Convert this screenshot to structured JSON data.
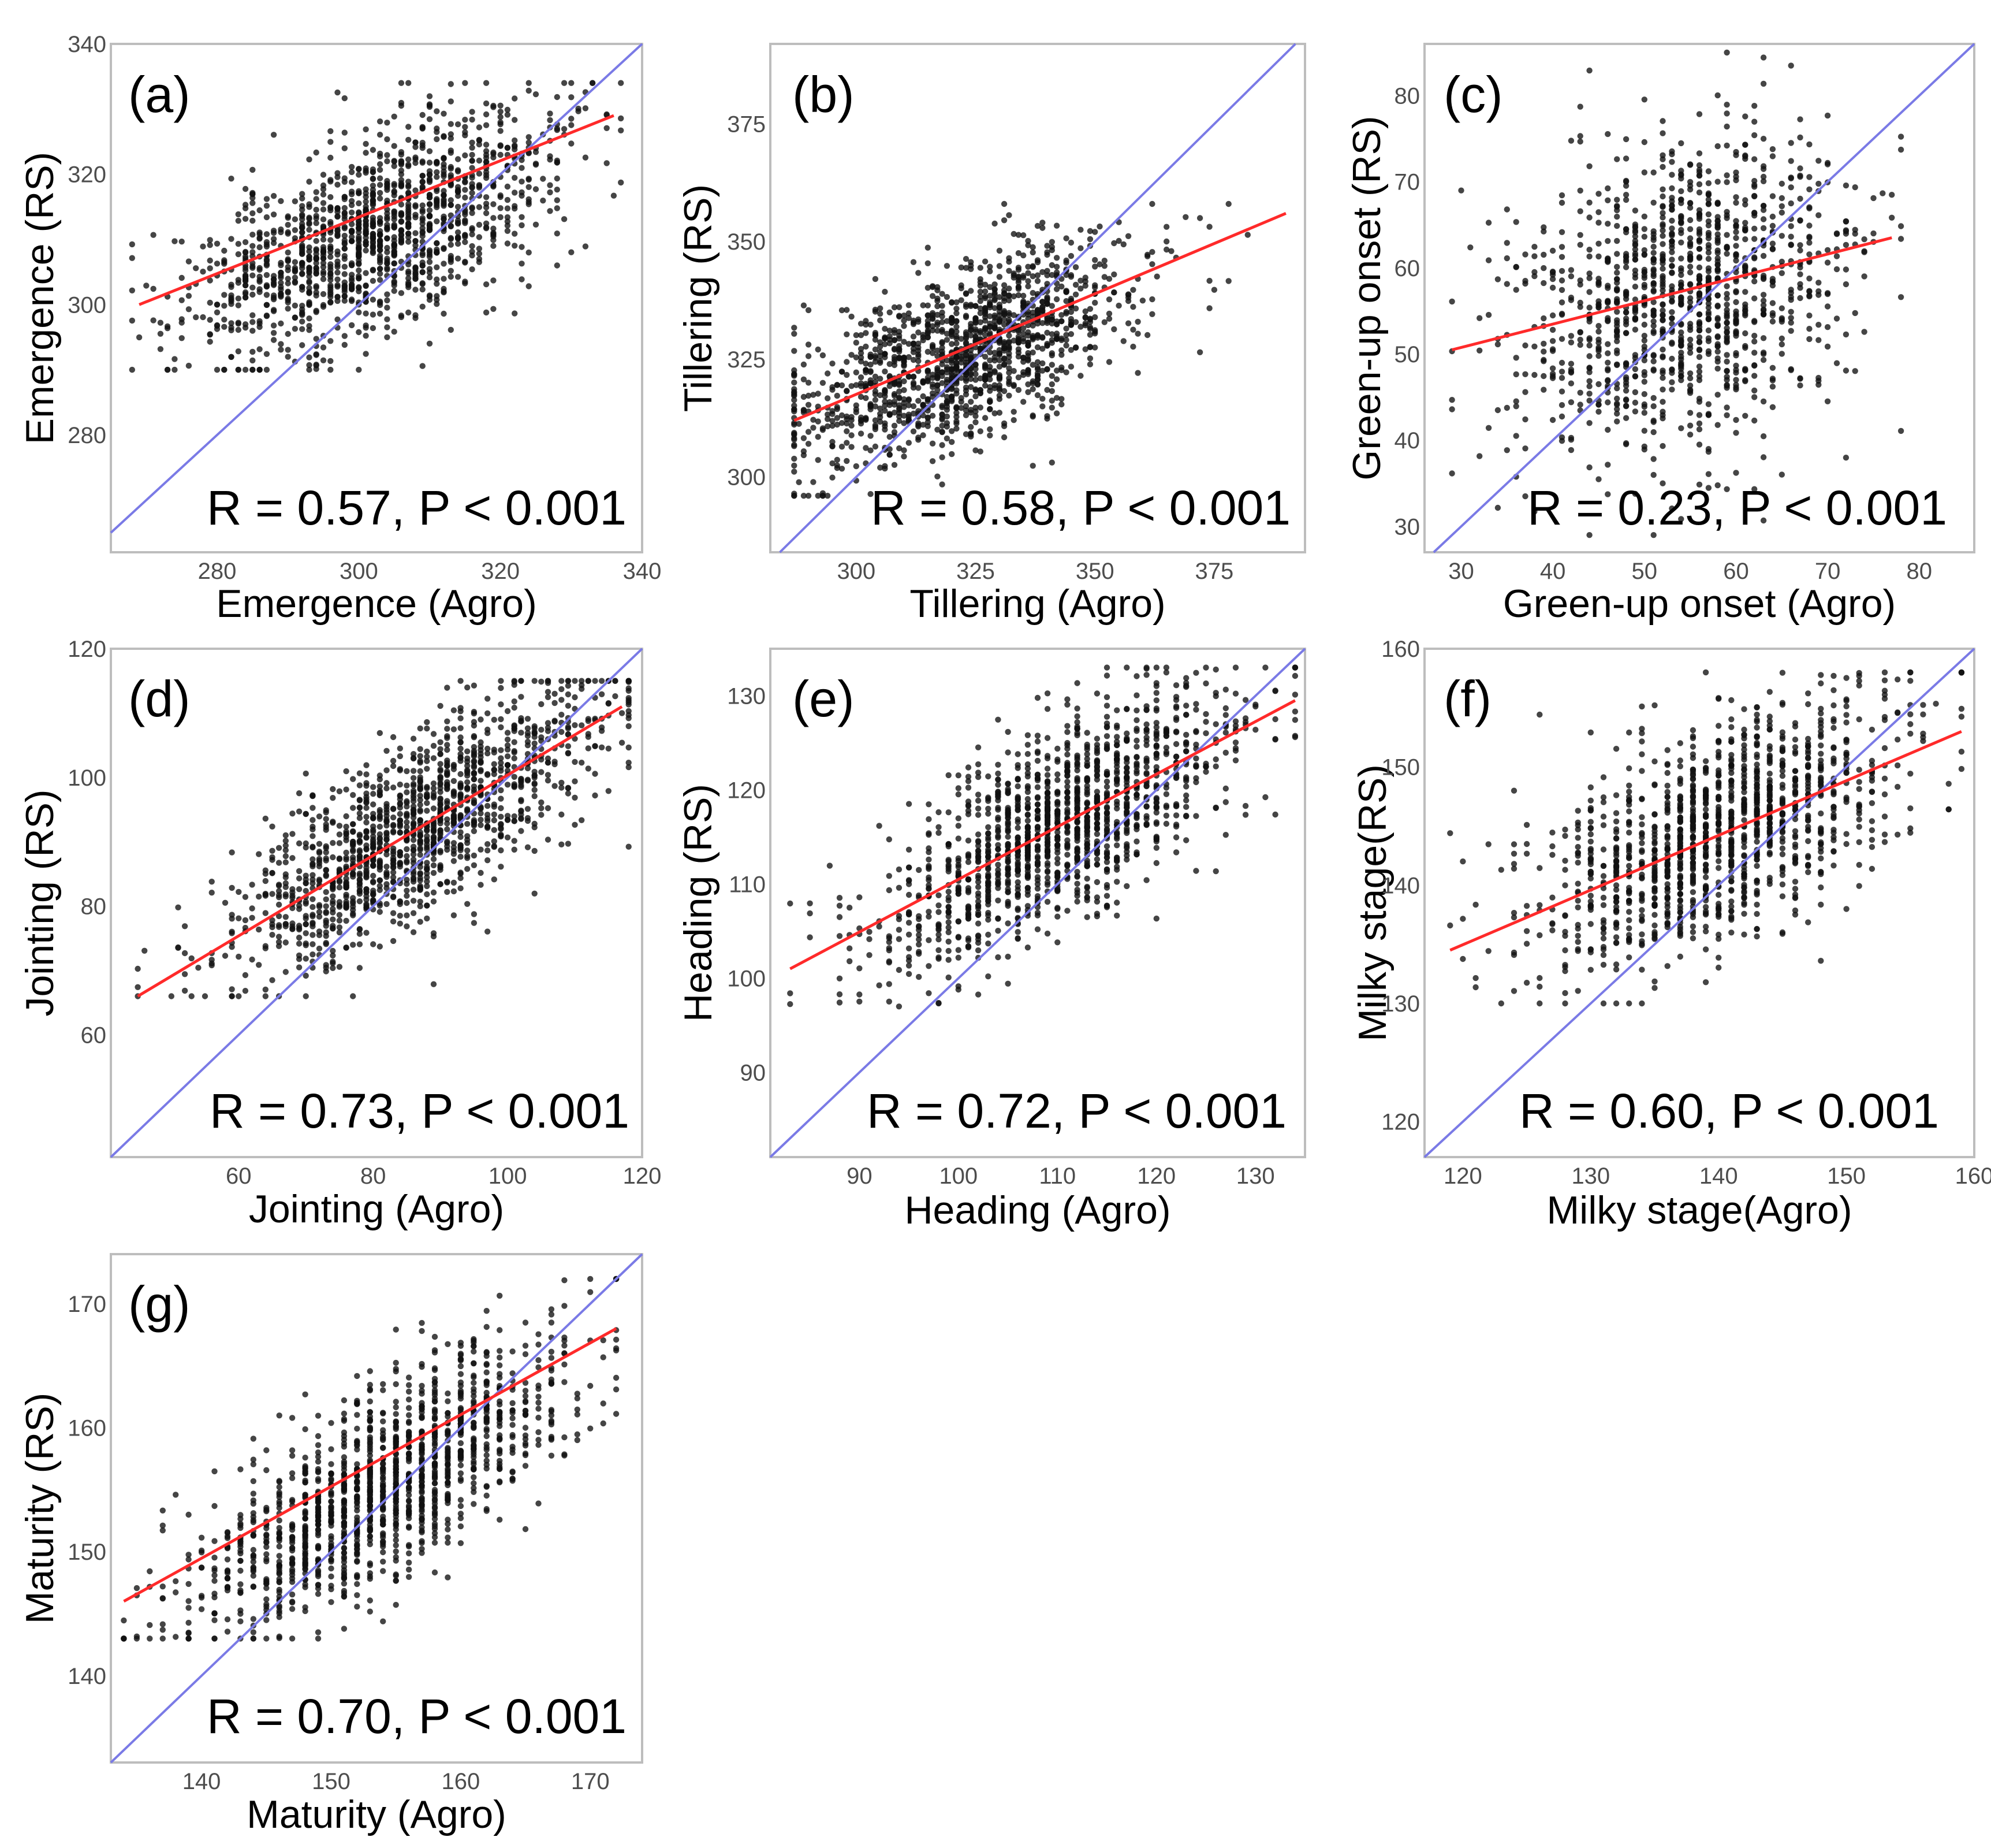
{
  "figure": {
    "colors": {
      "points": "#111111",
      "fit_line": "#ff2a2a",
      "identity_line": "#7a7ae6",
      "frame": "#bdbdbd",
      "tick_text": "#4d4d4d"
    }
  },
  "chart_data": [
    {
      "type": "scatter",
      "panel": "(a)",
      "xlabel": "Emergence (Agro)",
      "ylabel": "Emergence (RS)",
      "annotation": "R = 0.57, P < 0.001",
      "xlim": [
        265,
        340
      ],
      "ylim": [
        262,
        340
      ],
      "xticks": [
        280,
        300,
        320,
        340
      ],
      "xtick_labels": [
        "280",
        "300",
        "320",
        "340"
      ],
      "yticks": [
        280,
        300,
        320,
        340
      ],
      "ytick_labels": [
        "280",
        "300",
        "320",
        "340"
      ],
      "fit_line": {
        "x": [
          269,
          336
        ],
        "y": [
          300,
          329
        ]
      },
      "identity_line": true,
      "points": {
        "n": 1400,
        "x_center": 302,
        "x_spread": 13,
        "y_center": 311,
        "y_noise": 7.5,
        "slope": 0.43,
        "seed": 11,
        "x_min": 268,
        "x_max": 337,
        "y_min": 290,
        "y_max": 334
      }
    },
    {
      "type": "scatter",
      "panel": "(b)",
      "xlabel": "Tillering (Agro)",
      "ylabel": "Tillering (RS)",
      "annotation": "R = 0.58, P < 0.001",
      "xlim": [
        282,
        394
      ],
      "ylim": [
        284,
        392
      ],
      "xticks": [
        300,
        325,
        350,
        375
      ],
      "xtick_labels": [
        "300",
        "325",
        "350",
        "375"
      ],
      "yticks": [
        300,
        325,
        350,
        375
      ],
      "ytick_labels": [
        "300",
        "325",
        "350",
        "375"
      ],
      "fit_line": {
        "x": [
          287,
          390
        ],
        "y": [
          312,
          356
        ]
      },
      "identity_line": true,
      "points": {
        "n": 1400,
        "x_center": 322,
        "x_spread": 18,
        "y_center": 326,
        "y_noise": 9,
        "slope": 0.43,
        "seed": 22,
        "x_min": 287,
        "x_max": 390,
        "y_min": 296,
        "y_max": 358
      }
    },
    {
      "type": "scatter",
      "panel": "(c)",
      "xlabel": "Green-up onset (Agro)",
      "ylabel": "Green-up onset (RS)",
      "annotation": "R = 0.23, P < 0.001",
      "xlim": [
        26,
        86
      ],
      "ylim": [
        27,
        86
      ],
      "xticks": [
        30,
        40,
        50,
        60,
        70,
        80
      ],
      "xtick_labels": [
        "30",
        "40",
        "50",
        "60",
        "70",
        "80"
      ],
      "yticks": [
        30,
        40,
        50,
        60,
        70,
        80
      ],
      "ytick_labels": [
        "30",
        "40",
        "50",
        "60",
        "70",
        "80"
      ],
      "fit_line": {
        "x": [
          29,
          77
        ],
        "y": [
          50.5,
          63.5
        ]
      },
      "identity_line": true,
      "points": {
        "n": 1200,
        "x_center": 54,
        "x_spread": 9,
        "y_center": 57,
        "y_noise": 9,
        "slope": 0.27,
        "seed": 33,
        "x_min": 29,
        "x_max": 78,
        "y_min": 29,
        "y_max": 85
      }
    },
    {
      "type": "scatter",
      "panel": "(d)",
      "xlabel": "Jointing (Agro)",
      "ylabel": "Jointing (RS)",
      "annotation": "R = 0.73, P < 0.001",
      "xlim": [
        41,
        120
      ],
      "ylim": [
        41,
        120
      ],
      "xticks": [
        60,
        80,
        100,
        120
      ],
      "xtick_labels": [
        "60",
        "80",
        "100",
        "120"
      ],
      "yticks": [
        60,
        80,
        100,
        120
      ],
      "ytick_labels": [
        "60",
        "80",
        "100",
        "120"
      ],
      "fit_line": {
        "x": [
          45,
          117
        ],
        "y": [
          66,
          111
        ]
      },
      "identity_line": true,
      "points": {
        "n": 1400,
        "x_center": 86,
        "x_spread": 14,
        "y_center": 91.5,
        "y_noise": 7,
        "slope": 0.625,
        "seed": 44,
        "x_min": 45,
        "x_max": 118,
        "y_min": 66,
        "y_max": 115
      }
    },
    {
      "type": "scatter",
      "panel": "(e)",
      "xlabel": "Heading (Agro)",
      "ylabel": "Heading (RS)",
      "annotation": "R = 0.72, P < 0.001",
      "xlim": [
        81,
        135
      ],
      "ylim": [
        81,
        135
      ],
      "xticks": [
        90,
        100,
        110,
        120,
        130
      ],
      "xtick_labels": [
        "90",
        "100",
        "110",
        "120",
        "130"
      ],
      "yticks": [
        90,
        100,
        110,
        120,
        130
      ],
      "ytick_labels": [
        "90",
        "100",
        "110",
        "120",
        "130"
      ],
      "fit_line": {
        "x": [
          83,
          134
        ],
        "y": [
          101,
          129.5
        ]
      },
      "identity_line": true,
      "points": {
        "n": 1400,
        "x_center": 110,
        "x_spread": 9,
        "y_center": 116,
        "y_noise": 5,
        "slope": 0.56,
        "seed": 55,
        "x_min": 83,
        "x_max": 134,
        "y_min": 97,
        "y_max": 133
      }
    },
    {
      "type": "scatter",
      "panel": "(f)",
      "xlabel": "Milky stage(Agro)",
      "ylabel": "Milky stage(RS)",
      "annotation": "R = 0.60, P < 0.001",
      "xlim": [
        117,
        160
      ],
      "ylim": [
        117,
        160
      ],
      "xticks": [
        120,
        130,
        140,
        150,
        160
      ],
      "xtick_labels": [
        "120",
        "130",
        "140",
        "150",
        "160"
      ],
      "yticks": [
        120,
        130,
        140,
        150,
        160
      ],
      "ytick_labels": [
        "120",
        "130",
        "140",
        "150",
        "160"
      ],
      "fit_line": {
        "x": [
          119,
          159
        ],
        "y": [
          134.5,
          153
        ]
      },
      "identity_line": true,
      "points": {
        "n": 1300,
        "x_center": 140,
        "x_spread": 7,
        "y_center": 144.5,
        "y_noise": 4.5,
        "slope": 0.46,
        "seed": 66,
        "x_min": 119,
        "x_max": 159,
        "y_min": 130,
        "y_max": 158
      }
    },
    {
      "type": "scatter",
      "panel": "(g)",
      "xlabel": "Maturity (Agro)",
      "ylabel": "Maturity (RS)",
      "annotation": "R = 0.70, P < 0.001",
      "xlim": [
        133,
        174
      ],
      "ylim": [
        133,
        174
      ],
      "xticks": [
        140,
        150,
        160,
        170
      ],
      "xtick_labels": [
        "140",
        "150",
        "160",
        "170"
      ],
      "yticks": [
        140,
        150,
        160,
        170
      ],
      "ytick_labels": [
        "140",
        "150",
        "160",
        "170"
      ],
      "fit_line": {
        "x": [
          134,
          172
        ],
        "y": [
          146,
          168
        ]
      },
      "identity_line": true,
      "points": {
        "n": 1400,
        "x_center": 154,
        "x_spread": 7,
        "y_center": 155.5,
        "y_noise": 4,
        "slope": 0.58,
        "seed": 77,
        "x_min": 134,
        "x_max": 172,
        "y_min": 143,
        "y_max": 172
      }
    }
  ]
}
